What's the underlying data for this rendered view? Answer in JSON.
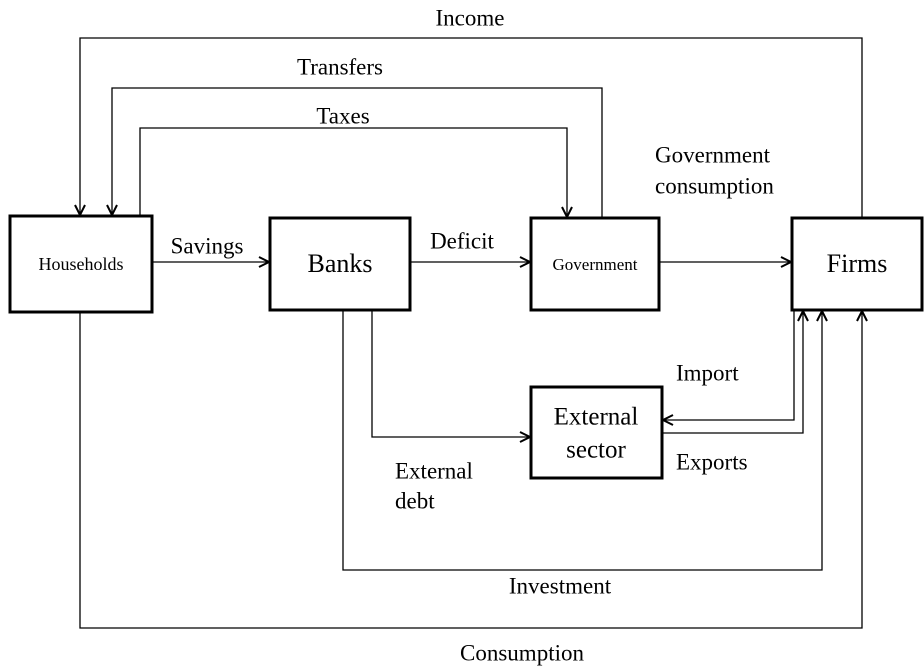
{
  "nodes": [
    {
      "label": [
        "Households"
      ]
    },
    {
      "label": [
        "Banks"
      ]
    },
    {
      "label": [
        "Government"
      ]
    },
    {
      "label": [
        "Firms"
      ]
    },
    {
      "label": [
        "External",
        "sector"
      ]
    }
  ],
  "flows": [
    {
      "label": [
        "Income"
      ]
    },
    {
      "label": [
        "Transfers"
      ]
    },
    {
      "label": [
        "Taxes"
      ]
    },
    {
      "label": [
        "Savings"
      ]
    },
    {
      "label": [
        "Deficit"
      ]
    },
    {
      "label": [
        "Government",
        "consumption"
      ]
    },
    {
      "label": [
        "External",
        "debt"
      ]
    },
    {
      "label": [
        "Import"
      ]
    },
    {
      "label": [
        "Exports"
      ]
    },
    {
      "label": [
        "Investment"
      ]
    },
    {
      "label": [
        "Consumption"
      ]
    }
  ]
}
